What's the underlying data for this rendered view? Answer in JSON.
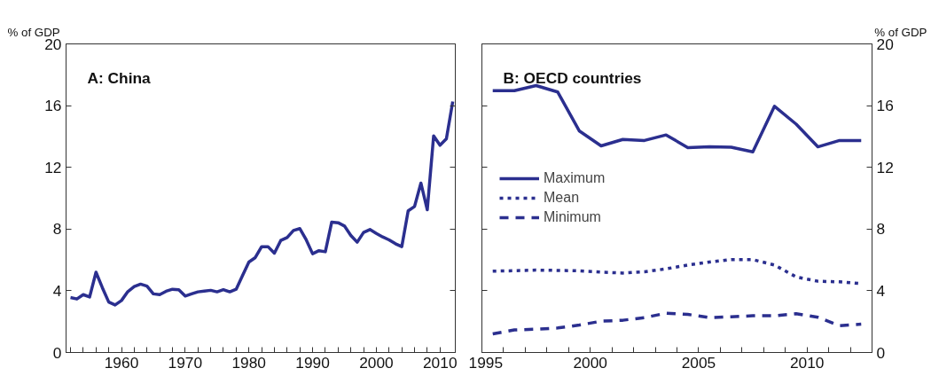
{
  "chart_data": [
    {
      "type": "line",
      "title": "A: China",
      "ylabel": "% of GDP",
      "x": [
        1952,
        1953,
        1954,
        1955,
        1956,
        1957,
        1958,
        1959,
        1960,
        1961,
        1962,
        1963,
        1964,
        1965,
        1966,
        1967,
        1968,
        1969,
        1970,
        1971,
        1972,
        1973,
        1974,
        1975,
        1976,
        1977,
        1978,
        1979,
        1980,
        1981,
        1982,
        1983,
        1984,
        1985,
        1986,
        1987,
        1988,
        1989,
        1990,
        1991,
        1992,
        1993,
        1994,
        1995,
        1996,
        1997,
        1998,
        1999,
        2000,
        2001,
        2002,
        2003,
        2004,
        2005,
        2006,
        2007,
        2008,
        2009,
        2010,
        2011,
        2012
      ],
      "series": [
        {
          "color": "#2b2f8f",
          "line_style": "solid",
          "values": [
            3.56,
            3.47,
            3.75,
            3.6,
            5.2,
            4.2,
            3.27,
            3.08,
            3.37,
            3.95,
            4.27,
            4.43,
            4.3,
            3.8,
            3.75,
            3.97,
            4.1,
            4.07,
            3.66,
            3.8,
            3.93,
            3.98,
            4.03,
            3.93,
            4.07,
            3.93,
            4.1,
            4.98,
            5.86,
            6.15,
            6.86,
            6.86,
            6.44,
            7.26,
            7.45,
            7.91,
            8.03,
            7.3,
            6.4,
            6.6,
            6.53,
            8.45,
            8.41,
            8.2,
            7.59,
            7.15,
            7.78,
            7.97,
            7.72,
            7.49,
            7.3,
            7.05,
            6.86,
            9.18,
            9.46,
            10.98,
            9.25,
            14.04,
            13.43,
            13.85,
            16.26
          ]
        }
      ],
      "xlim": [
        1951.3,
        2012.4
      ],
      "xticks": [
        {
          "value": 1952,
          "label": null
        },
        {
          "value": 1954,
          "label": null
        },
        {
          "value": 1956,
          "label": null
        },
        {
          "value": 1958,
          "label": null
        },
        1960,
        {
          "value": 1962,
          "label": null
        },
        {
          "value": 1964,
          "label": null
        },
        {
          "value": 1966,
          "label": null
        },
        {
          "value": 1968,
          "label": null
        },
        1970,
        {
          "value": 1972,
          "label": null
        },
        {
          "value": 1974,
          "label": null
        },
        {
          "value": 1976,
          "label": null
        },
        {
          "value": 1978,
          "label": null
        },
        1980,
        {
          "value": 1982,
          "label": null
        },
        {
          "value": 1984,
          "label": null
        },
        {
          "value": 1986,
          "label": null
        },
        {
          "value": 1988,
          "label": null
        },
        1990,
        {
          "value": 1992,
          "label": null
        },
        {
          "value": 1994,
          "label": null
        },
        {
          "value": 1996,
          "label": null
        },
        {
          "value": 1998,
          "label": null
        },
        2000,
        {
          "value": 2002,
          "label": null
        },
        {
          "value": 2004,
          "label": null
        },
        {
          "value": 2006,
          "label": null
        },
        {
          "value": 2008,
          "label": null
        },
        2010
      ],
      "ylim": [
        0,
        20
      ],
      "yticks": [
        0,
        4,
        8,
        12,
        16,
        20
      ],
      "grid": false,
      "legend": false
    },
    {
      "type": "line",
      "title": "B: OECD countries",
      "y2label": "% of GDP",
      "x": [
        1995.5,
        1996.5,
        1997.5,
        1998.5,
        1999.5,
        2000.5,
        2001.5,
        2002.5,
        2003.5,
        2004.5,
        2005.5,
        2006.5,
        2007.5,
        2008.5,
        2009.5,
        2010.5,
        2011.5,
        2012.5
      ],
      "series": [
        {
          "name": "Maximum",
          "color": "#2b2f8f",
          "line_style": "solid",
          "axis": "y2",
          "values": [
            16.97,
            16.97,
            17.3,
            16.88,
            14.35,
            13.39,
            13.81,
            13.74,
            14.1,
            13.28,
            13.33,
            13.3,
            13.0,
            15.96,
            14.8,
            13.33,
            13.74,
            13.74
          ]
        },
        {
          "name": "Mean",
          "color": "#2b2f8f",
          "line_style": "dotted",
          "axis": "y2",
          "values": [
            5.27,
            5.3,
            5.34,
            5.32,
            5.29,
            5.21,
            5.15,
            5.23,
            5.42,
            5.67,
            5.86,
            6.02,
            6.02,
            5.67,
            4.9,
            4.62,
            4.58,
            4.46
          ]
        },
        {
          "name": "Minimum",
          "color": "#2b2f8f",
          "line_style": "dashed",
          "axis": "y2",
          "values": [
            1.21,
            1.46,
            1.51,
            1.59,
            1.78,
            2.03,
            2.09,
            2.26,
            2.55,
            2.47,
            2.26,
            2.32,
            2.38,
            2.38,
            2.51,
            2.28,
            1.74,
            1.84
          ]
        }
      ],
      "xlim": [
        1995,
        2013
      ],
      "xticks": [
        1995,
        {
          "value": 1996,
          "label": null
        },
        {
          "value": 1997,
          "label": null
        },
        {
          "value": 1998,
          "label": null
        },
        {
          "value": 1999,
          "label": null
        },
        2000,
        {
          "value": 2001,
          "label": null
        },
        {
          "value": 2002,
          "label": null
        },
        {
          "value": 2003,
          "label": null
        },
        {
          "value": 2004,
          "label": null
        },
        2005,
        {
          "value": 2006,
          "label": null
        },
        {
          "value": 2007,
          "label": null
        },
        {
          "value": 2008,
          "label": null
        },
        {
          "value": 2009,
          "label": null
        },
        2010,
        {
          "value": 2011,
          "label": null
        },
        {
          "value": 2012,
          "label": null
        }
      ],
      "y2lim": [
        0,
        20
      ],
      "y2ticks": [
        0,
        4,
        8,
        12,
        16,
        20
      ],
      "grid": false,
      "legend": "left"
    }
  ]
}
